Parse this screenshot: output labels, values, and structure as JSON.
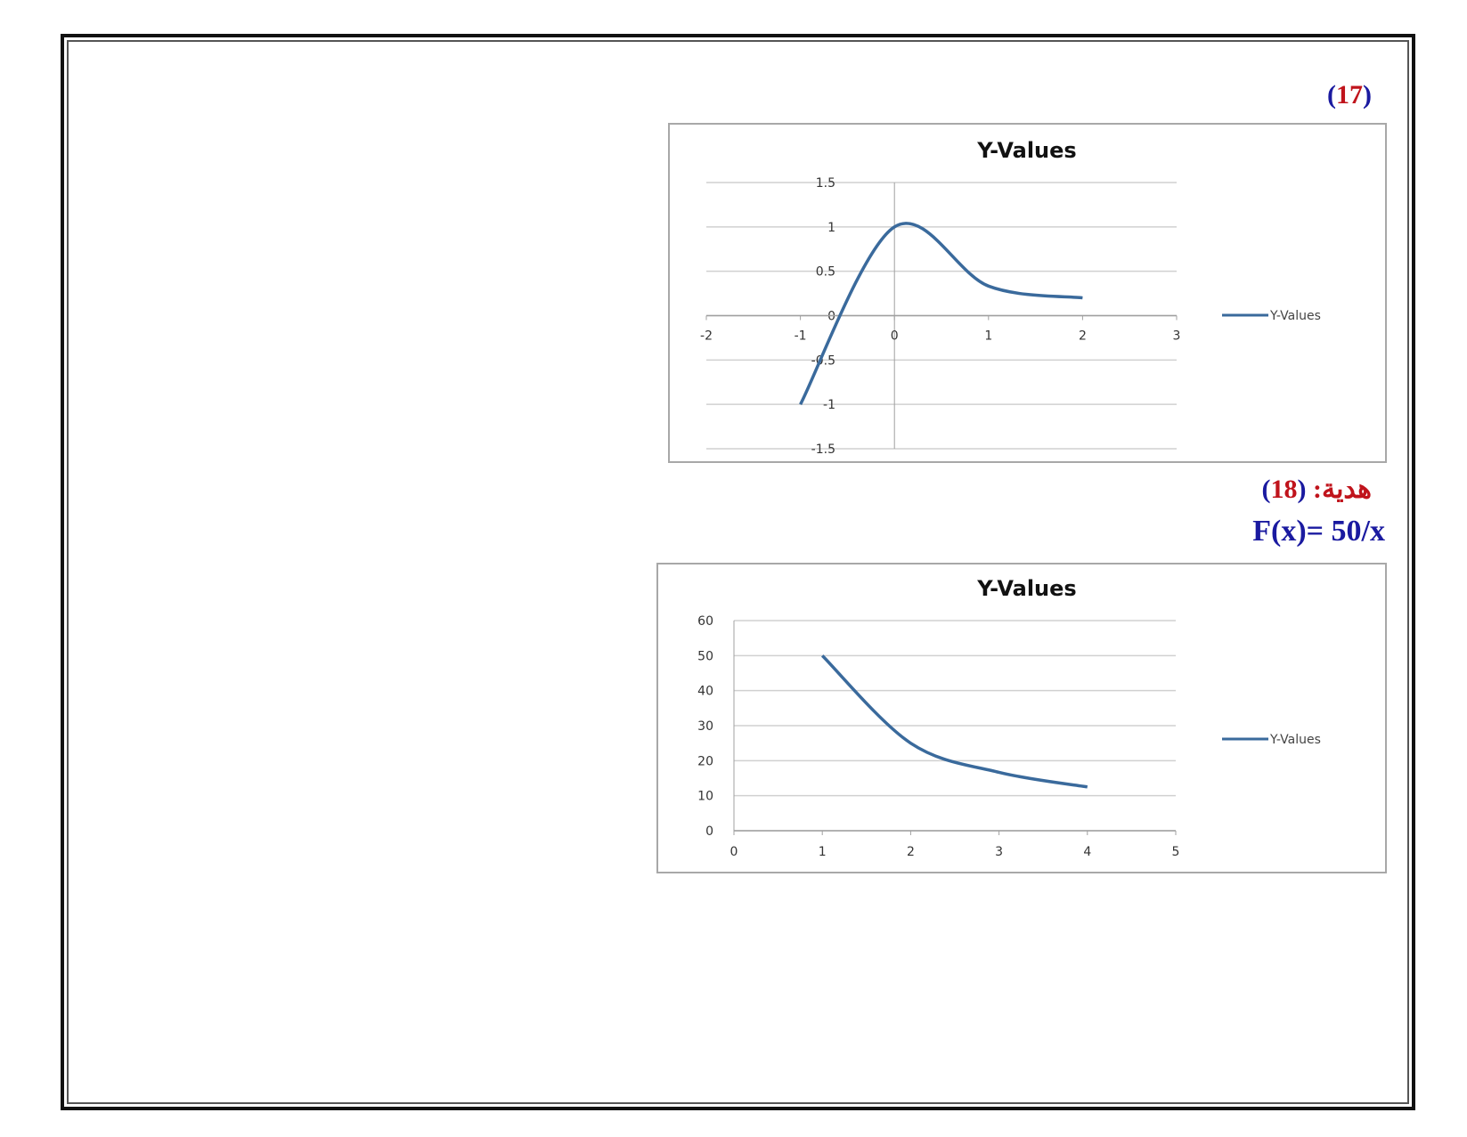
{
  "labels": {
    "q17_open": "(",
    "q17_num": "17",
    "q17_close": ")",
    "q18_open": "(",
    "q18_num": "18",
    "q18_close": ")",
    "q18_word": "هدية:",
    "formula": "F(x)= 50/x"
  },
  "colors": {
    "line": "#3a6a9c",
    "grid": "#d0d0d0",
    "axis": "#a0a0a0",
    "frame": "#111111",
    "number_blue": "#1a1aa0",
    "number_red": "#c0141c"
  },
  "chart_data": [
    {
      "type": "line",
      "title": "Y-Values",
      "legend": {
        "position": "right",
        "entries": [
          "Y-Values"
        ]
      },
      "x": [
        -1,
        0,
        1,
        2
      ],
      "series": [
        {
          "name": "Y-Values",
          "values": [
            -1,
            1,
            0.333,
            0.2
          ]
        }
      ],
      "xlim": [
        -2,
        3
      ],
      "ylim": [
        -1.5,
        1.5
      ],
      "xticks": [
        "-2",
        "-1",
        "0",
        "1",
        "2",
        "3"
      ],
      "yticks": [
        "-1.5",
        "-1",
        "-0.5",
        "0",
        "0.5",
        "1",
        "1.5"
      ],
      "smooth": true,
      "grid": "horizontal"
    },
    {
      "type": "line",
      "title": "Y-Values",
      "legend": {
        "position": "right",
        "entries": [
          "Y-Values"
        ]
      },
      "x": [
        1,
        2,
        3,
        4
      ],
      "series": [
        {
          "name": "Y-Values",
          "values": [
            50,
            25,
            16.67,
            12.5
          ]
        }
      ],
      "xlim": [
        0,
        5
      ],
      "ylim": [
        0,
        60
      ],
      "xticks": [
        "0",
        "1",
        "2",
        "3",
        "4",
        "5"
      ],
      "yticks": [
        "0",
        "10",
        "20",
        "30",
        "40",
        "50",
        "60"
      ],
      "smooth": true,
      "grid": "horizontal"
    }
  ]
}
